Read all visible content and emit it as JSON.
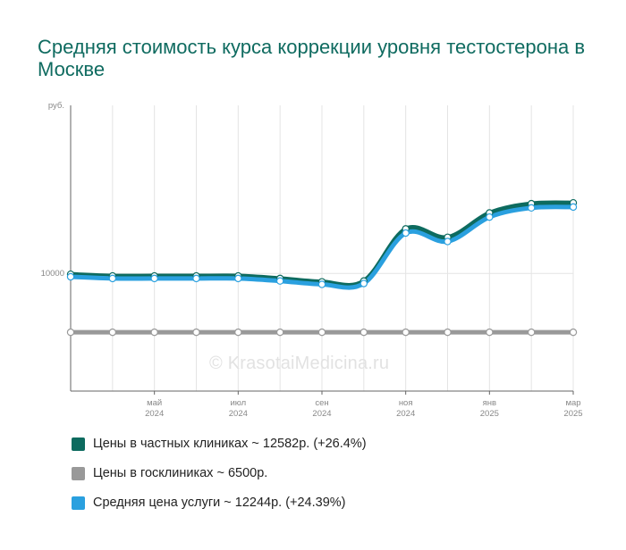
{
  "chart_data": {
    "type": "line",
    "title": "Средняя стоимость курса коррекции уровня тестостерона в Москве",
    "ylabel": "руб.",
    "y_ticks": [
      10000
    ],
    "ylim": [
      3000,
      20000
    ],
    "x": [
      "2024-03",
      "2024-04",
      "2024-05",
      "2024-06",
      "2024-07",
      "2024-08",
      "2024-09",
      "2024-10",
      "2024-11",
      "2024-12",
      "2025-01",
      "2025-02",
      "2025-03"
    ],
    "x_tick_labels": [
      {
        "x": "2024-05",
        "month": "май",
        "year": "2024"
      },
      {
        "x": "2024-07",
        "month": "июл",
        "year": "2024"
      },
      {
        "x": "2024-09",
        "month": "сен",
        "year": "2024"
      },
      {
        "x": "2024-11",
        "month": "ноя",
        "year": "2024"
      },
      {
        "x": "2025-01",
        "month": "янв",
        "year": "2025"
      },
      {
        "x": "2025-03",
        "month": "мар",
        "year": "2025"
      }
    ],
    "grid": true,
    "legend_position": "bottom",
    "series": [
      {
        "name": "Цены в частных клиниках ~ 12582р. (+26.4%)",
        "color": "#0d6b5f",
        "values": [
          9950,
          9850,
          9850,
          9850,
          9850,
          9700,
          9500,
          9550,
          12650,
          12150,
          13600,
          14150,
          14200
        ]
      },
      {
        "name": "Цены в госклиниках ~ 6500р.",
        "color": "#999999",
        "values": [
          6500,
          6500,
          6500,
          6500,
          6500,
          6500,
          6500,
          6500,
          6500,
          6500,
          6500,
          6500,
          6500
        ]
      },
      {
        "name": "Средняя цена услуги ~ 12244р. (+24.39%)",
        "color": "#2aa0df",
        "values": [
          9800,
          9700,
          9700,
          9700,
          9700,
          9550,
          9350,
          9400,
          12400,
          11900,
          13350,
          13900,
          13950
        ]
      }
    ]
  },
  "watermark": "© KrasotaiMedicina.ru"
}
